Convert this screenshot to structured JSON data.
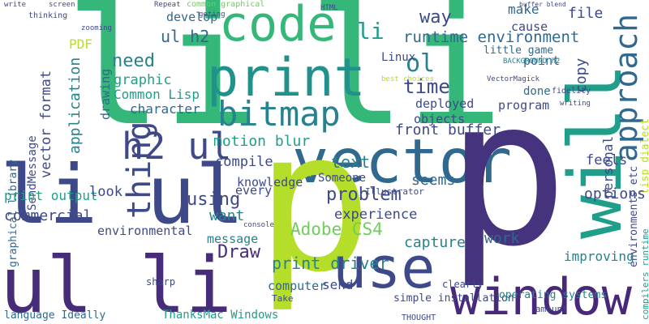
{
  "words": [
    "li",
    "li",
    "print",
    "code",
    "bitmap",
    "vector",
    "will",
    "approach",
    "p",
    "p",
    "li ul",
    "ul li",
    "window",
    "use",
    "thing",
    "h2 ul",
    "print driver",
    "Adobe CS4",
    "runtime environment",
    "ul h2",
    "PDF",
    "develop",
    "need",
    "graphic",
    "Common Lisp",
    "character",
    "drawing",
    "application",
    "vector format",
    "SendMessage",
    "graphical library",
    "motion blur",
    "ol",
    "li",
    "way",
    "make",
    "file",
    "cause",
    "point",
    "copy",
    "lisp dialect",
    "time",
    "deployed",
    "Linux",
    "objects",
    "program",
    "done",
    "front buffer",
    "personal",
    "options",
    "feels",
    "environments etc",
    "compilers runtime",
    "problem",
    "experience",
    "text",
    "seems",
    "capture",
    "work",
    "improving",
    "knowledge",
    "compile",
    "using",
    "want",
    "message",
    "Draw",
    "commercial",
    "print output",
    "look",
    "environmental",
    "ThanksMac Windows",
    "Someone",
    "send",
    "computer",
    "every",
    "language Ideally",
    "sharp",
    "Take",
    "THOUGHT",
    "simple installation",
    "operating systems",
    "clearly",
    "amount",
    "write",
    "screen",
    "thinking",
    "zooming",
    "Repeat",
    "HTML",
    "little game",
    "BACKGROUND h2",
    "buffer blend",
    "common graphical",
    "geting",
    "fidelity",
    "VectorMagick",
    "writing",
    "best choices",
    "Illustrator",
    "console"
  ]
}
